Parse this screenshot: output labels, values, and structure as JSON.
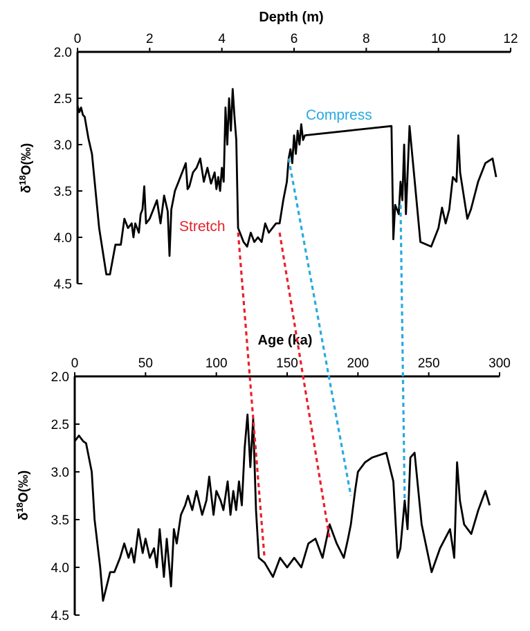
{
  "colors": {
    "line": "#000000",
    "stretch": "#e8202a",
    "compress": "#29a9e0"
  },
  "chart_data": [
    {
      "type": "line",
      "title": "",
      "xlabel": "Depth (m)",
      "ylabel_main": "δ",
      "ylabel_sup": "18",
      "ylabel_rest": "O(‰)",
      "xlim": [
        0,
        12
      ],
      "ylim": [
        2.0,
        4.5
      ],
      "y_inverted": true,
      "x_axis_position": "top",
      "xticks": [
        "0",
        "2",
        "4",
        "6",
        "8",
        "10",
        "12"
      ],
      "yticks": [
        "2.0",
        "2.5",
        "3.0",
        "3.5",
        "4.0",
        "4.5"
      ],
      "series": [
        {
          "x": [
            0.0,
            0.05,
            0.1,
            0.15,
            0.2,
            0.3,
            0.4,
            0.6,
            0.8,
            0.9,
            1.05,
            1.2,
            1.3,
            1.4,
            1.5,
            1.55,
            1.6,
            1.7,
            1.75,
            1.8,
            1.85,
            1.9,
            2.0,
            2.1,
            2.2,
            2.3,
            2.4,
            2.5,
            2.55,
            2.6,
            2.7,
            2.8,
            2.9,
            3.0,
            3.05,
            3.1,
            3.2,
            3.3,
            3.4,
            3.5,
            3.6,
            3.7,
            3.8,
            3.85,
            3.9,
            3.95,
            4.0,
            4.05,
            4.1,
            4.15,
            4.2,
            4.25,
            4.3,
            4.35,
            4.4,
            4.45,
            4.5,
            4.6,
            4.7,
            4.8,
            4.9,
            5.0,
            5.1,
            5.2,
            5.3,
            5.4,
            5.5,
            5.6,
            5.7,
            5.8,
            5.85,
            5.9,
            5.95,
            6.0,
            6.05,
            6.1,
            6.15,
            6.2,
            6.25,
            6.3,
            8.7,
            8.75,
            8.8,
            8.85,
            8.9,
            8.95,
            9.0,
            9.05,
            9.1,
            9.2,
            9.5,
            9.8,
            10.0,
            10.1,
            10.2,
            10.3,
            10.4,
            10.5,
            10.55,
            10.6,
            10.7,
            10.8,
            10.9,
            11.1,
            11.3,
            11.5,
            11.6
          ],
          "y": [
            2.58,
            2.65,
            2.6,
            2.68,
            2.7,
            2.93,
            3.1,
            3.9,
            4.4,
            4.4,
            4.08,
            4.08,
            3.8,
            3.9,
            3.85,
            4.0,
            3.85,
            3.95,
            3.75,
            3.7,
            3.45,
            3.85,
            3.8,
            3.7,
            3.6,
            3.85,
            3.55,
            3.72,
            4.2,
            3.7,
            3.5,
            3.4,
            3.3,
            3.2,
            3.48,
            3.45,
            3.3,
            3.25,
            3.15,
            3.4,
            3.25,
            3.42,
            3.3,
            3.48,
            3.35,
            3.5,
            3.25,
            3.4,
            2.6,
            3.0,
            2.5,
            2.85,
            2.4,
            2.7,
            2.95,
            3.9,
            3.95,
            4.05,
            4.1,
            3.95,
            4.05,
            4.0,
            4.05,
            3.85,
            3.95,
            3.9,
            3.85,
            3.85,
            3.6,
            3.4,
            3.15,
            3.05,
            3.2,
            2.9,
            3.1,
            2.85,
            3.0,
            2.78,
            2.95,
            2.9,
            2.8,
            4.02,
            3.65,
            3.7,
            3.75,
            3.4,
            3.6,
            3.0,
            3.75,
            2.8,
            4.05,
            4.1,
            3.9,
            3.68,
            3.85,
            3.7,
            3.35,
            3.4,
            2.9,
            3.3,
            3.55,
            3.8,
            3.7,
            3.4,
            3.2,
            3.15,
            3.35
          ]
        }
      ]
    },
    {
      "type": "line",
      "title": "",
      "xlabel": "Age (ka)",
      "ylabel_main": "δ",
      "ylabel_sup": "18",
      "ylabel_rest": "O(‰)",
      "xlim": [
        0,
        300
      ],
      "ylim": [
        2.0,
        4.5
      ],
      "y_inverted": true,
      "x_axis_position": "top",
      "xticks": [
        "0",
        "50",
        "100",
        "150",
        "200",
        "250",
        "300"
      ],
      "yticks": [
        "2.0",
        "2.5",
        "3.0",
        "3.5",
        "4.0",
        "4.5"
      ],
      "series": [
        {
          "x": [
            0,
            3,
            6,
            8,
            12,
            14,
            18,
            20,
            25,
            28,
            32,
            35,
            38,
            40,
            42,
            45,
            48,
            50,
            53,
            56,
            58,
            60,
            63,
            65,
            68,
            70,
            72,
            75,
            78,
            80,
            83,
            86,
            90,
            93,
            95,
            98,
            100,
            103,
            105,
            108,
            110,
            112,
            114,
            116,
            118,
            120,
            122,
            124,
            126,
            128,
            130,
            134,
            140,
            145,
            150,
            155,
            160,
            165,
            170,
            175,
            180,
            185,
            190,
            193,
            195,
            198,
            200,
            205,
            210,
            220,
            225,
            228,
            230,
            233,
            235,
            237,
            240,
            245,
            252,
            258,
            265,
            268,
            270,
            272,
            275,
            280,
            285,
            290,
            293
          ],
          "y": [
            2.68,
            2.62,
            2.68,
            2.7,
            3.0,
            3.5,
            4.0,
            4.35,
            4.05,
            4.05,
            3.9,
            3.75,
            3.9,
            3.8,
            3.95,
            3.6,
            3.85,
            3.7,
            3.9,
            3.8,
            4.0,
            3.6,
            4.1,
            3.7,
            4.2,
            3.6,
            3.75,
            3.45,
            3.35,
            3.25,
            3.4,
            3.2,
            3.45,
            3.3,
            3.05,
            3.45,
            3.2,
            3.3,
            3.4,
            3.1,
            3.45,
            3.2,
            3.4,
            3.1,
            3.35,
            2.75,
            2.4,
            2.95,
            2.45,
            3.4,
            3.9,
            3.95,
            4.1,
            3.9,
            4.0,
            3.9,
            4.0,
            3.75,
            3.7,
            3.9,
            3.55,
            3.75,
            3.9,
            3.7,
            3.55,
            3.2,
            3.0,
            2.9,
            2.85,
            2.8,
            3.1,
            3.9,
            3.8,
            3.3,
            3.6,
            2.85,
            2.8,
            3.55,
            4.05,
            3.8,
            3.6,
            3.9,
            2.9,
            3.3,
            3.55,
            3.65,
            3.4,
            3.2,
            3.35
          ]
        }
      ]
    }
  ],
  "annotations": {
    "compress_label": "Compress",
    "stretch_label": "Stretch"
  },
  "tie_lines": [
    {
      "kind": "stretch",
      "from": {
        "depth": 4.45,
        "d18o": 3.95
      },
      "to": {
        "age": 134,
        "d18o": 3.9
      }
    },
    {
      "kind": "stretch",
      "from": {
        "depth": 5.6,
        "d18o": 3.95
      },
      "to": {
        "age": 180,
        "d18o": 3.7
      }
    },
    {
      "kind": "compress",
      "from": {
        "depth": 5.85,
        "d18o": 3.15
      },
      "to": {
        "age": 195,
        "d18o": 3.25
      }
    },
    {
      "kind": "compress",
      "from": {
        "depth": 8.95,
        "d18o": 3.65
      },
      "to": {
        "age": 233,
        "d18o": 3.3
      }
    }
  ]
}
